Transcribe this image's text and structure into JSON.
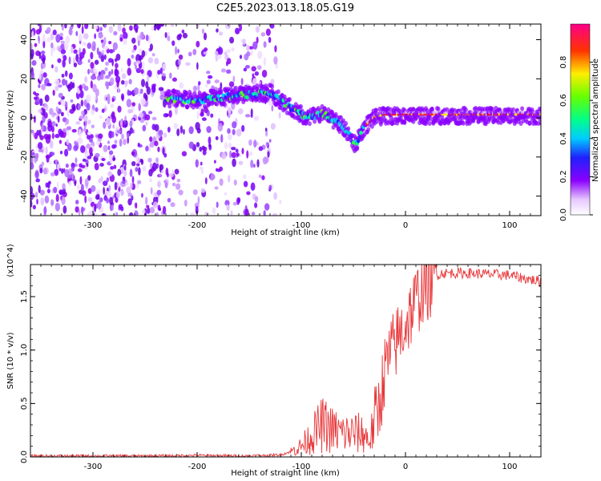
{
  "title": "C2E5.2023.013.18.05.G19",
  "colors": {
    "snr_line": "#e8383b",
    "spectrogram_base": "#7a00ff"
  },
  "chart_data": [
    {
      "type": "heatmap",
      "name": "spectrogram",
      "xlabel": "Height of straight line (km)",
      "ylabel": "Frequency (Hz)",
      "xlim": [
        -360,
        130
      ],
      "ylim": [
        -50,
        48
      ],
      "xticks": [
        -300,
        -200,
        -100,
        0,
        100
      ],
      "yticks": [
        -40,
        -20,
        0,
        20,
        40
      ],
      "colorbar": {
        "label": "Normalized spectral amplitude",
        "range": [
          0,
          1
        ],
        "ticks": [
          "0.0",
          "0.2",
          "0.4",
          "0.6",
          "0.8"
        ],
        "colormap": "rainbow (white-purple-blue-cyan-green-yellow-red-magenta)"
      },
      "noise_region": {
        "x": [
          -360,
          -120
        ],
        "y": [
          -50,
          48
        ]
      },
      "signal_trace": {
        "x": [
          -230,
          -200,
          -170,
          -150,
          -130,
          -110,
          -95,
          -80,
          -65,
          -55,
          -48,
          -40,
          -30,
          -20,
          -10,
          0,
          20,
          50,
          80,
          100,
          130
        ],
        "y": [
          10,
          9,
          11,
          12,
          13,
          5,
          0,
          2,
          -2,
          -8,
          -14,
          -5,
          0,
          1,
          1,
          1,
          1,
          1,
          1,
          1,
          1
        ]
      }
    },
    {
      "type": "line",
      "name": "snr",
      "xlabel": "Height of straight line (km)",
      "ylabel": "SNR (10 * v/v)",
      "y_multiplier": "(x10^4)",
      "xlim": [
        -360,
        130
      ],
      "ylim": [
        0,
        1.8
      ],
      "xticks": [
        -300,
        -200,
        -100,
        0,
        100
      ],
      "yticks": [
        "0.0",
        "0.5",
        "1.0",
        "1.5"
      ],
      "series": [
        {
          "x": [
            -360,
            -300,
            -250,
            -200,
            -150,
            -120,
            -110,
            -100,
            -95,
            -90,
            -85,
            -80,
            -75,
            -70,
            -60,
            -50,
            -40,
            -35,
            -30,
            -25,
            -20,
            -15,
            -10,
            -5,
            0,
            5,
            10,
            15,
            20,
            25,
            30,
            35,
            40,
            60,
            80,
            100,
            110,
            120,
            130
          ],
          "y": [
            0.01,
            0.01,
            0.01,
            0.015,
            0.01,
            0.02,
            0.05,
            0.1,
            0.15,
            0.2,
            0.25,
            0.3,
            0.28,
            0.25,
            0.22,
            0.22,
            0.22,
            0.15,
            0.3,
            0.5,
            0.8,
            0.95,
            1.05,
            1.15,
            1.25,
            1.35,
            1.45,
            1.55,
            1.6,
            1.65,
            1.7,
            1.72,
            1.72,
            1.72,
            1.71,
            1.7,
            1.68,
            1.66,
            1.64
          ]
        }
      ]
    }
  ],
  "x_tick_labels": [
    "-300",
    "-200",
    "-100",
    "0",
    "100"
  ],
  "freq_tick_labels": [
    "-40",
    "-20",
    "0",
    "20",
    "40"
  ]
}
